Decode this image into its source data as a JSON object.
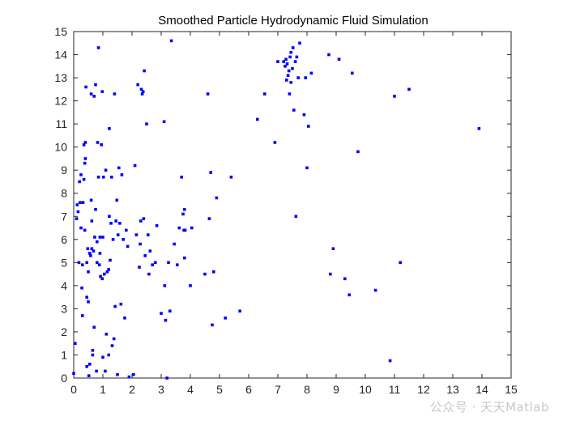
{
  "watermark": "公众号 · 天天Matlab",
  "chart_data": {
    "type": "scatter",
    "title": "Smoothed Particle Hydrodynamic Fluid Simulation",
    "xlabel": "",
    "ylabel": "",
    "xlim": [
      0,
      15
    ],
    "ylim": [
      0,
      15
    ],
    "xticks": [
      0,
      1,
      2,
      3,
      4,
      5,
      6,
      7,
      8,
      9,
      10,
      11,
      12,
      13,
      14,
      15
    ],
    "yticks": [
      0,
      1,
      2,
      3,
      4,
      5,
      6,
      7,
      8,
      9,
      10,
      11,
      12,
      13,
      14,
      15
    ],
    "grid": false,
    "marker_color": "#0000ff",
    "points": [
      [
        0.0,
        0.2
      ],
      [
        0.05,
        1.5
      ],
      [
        0.1,
        6.9
      ],
      [
        0.12,
        7.5
      ],
      [
        0.15,
        7.2
      ],
      [
        0.18,
        5.0
      ],
      [
        0.2,
        8.5
      ],
      [
        0.22,
        7.6
      ],
      [
        0.25,
        6.5
      ],
      [
        0.25,
        8.8
      ],
      [
        0.28,
        3.9
      ],
      [
        0.3,
        2.7
      ],
      [
        0.3,
        4.9
      ],
      [
        0.32,
        7.6
      ],
      [
        0.35,
        10.1
      ],
      [
        0.35,
        8.6
      ],
      [
        0.38,
        6.4
      ],
      [
        0.38,
        9.3
      ],
      [
        0.4,
        10.2
      ],
      [
        0.4,
        9.5
      ],
      [
        0.42,
        12.6
      ],
      [
        0.45,
        3.5
      ],
      [
        0.45,
        0.5
      ],
      [
        0.45,
        5.0
      ],
      [
        0.48,
        5.6
      ],
      [
        0.5,
        4.6
      ],
      [
        0.5,
        3.3
      ],
      [
        0.52,
        0.1
      ],
      [
        0.55,
        0.6
      ],
      [
        0.55,
        5.4
      ],
      [
        0.58,
        5.3
      ],
      [
        0.6,
        12.3
      ],
      [
        0.6,
        7.7
      ],
      [
        0.62,
        6.8
      ],
      [
        0.62,
        5.6
      ],
      [
        0.65,
        1.2
      ],
      [
        0.65,
        1.0
      ],
      [
        0.68,
        5.5
      ],
      [
        0.7,
        2.2
      ],
      [
        0.7,
        12.2
      ],
      [
        0.72,
        6.1
      ],
      [
        0.75,
        7.3
      ],
      [
        0.75,
        12.7
      ],
      [
        0.78,
        0.3
      ],
      [
        0.8,
        5.0
      ],
      [
        0.8,
        5.9
      ],
      [
        0.82,
        10.2
      ],
      [
        0.85,
        14.3
      ],
      [
        0.85,
        8.7
      ],
      [
        0.88,
        4.9
      ],
      [
        0.9,
        5.4
      ],
      [
        0.9,
        6.1
      ],
      [
        0.92,
        4.4
      ],
      [
        0.95,
        10.1
      ],
      [
        0.98,
        12.4
      ],
      [
        0.98,
        4.3
      ],
      [
        1.0,
        6.1
      ],
      [
        1.0,
        0.9
      ],
      [
        1.02,
        8.7
      ],
      [
        1.05,
        4.5
      ],
      [
        1.08,
        0.3
      ],
      [
        1.1,
        9.0
      ],
      [
        1.12,
        1.9
      ],
      [
        1.15,
        4.6
      ],
      [
        1.2,
        4.7
      ],
      [
        1.2,
        1.0
      ],
      [
        1.22,
        7.0
      ],
      [
        1.22,
        10.8
      ],
      [
        1.25,
        5.1
      ],
      [
        1.28,
        6.7
      ],
      [
        1.3,
        8.7
      ],
      [
        1.32,
        1.4
      ],
      [
        1.35,
        6.0
      ],
      [
        1.38,
        1.7
      ],
      [
        1.4,
        12.3
      ],
      [
        1.42,
        3.1
      ],
      [
        1.45,
        6.8
      ],
      [
        1.48,
        7.7
      ],
      [
        1.5,
        0.15
      ],
      [
        1.52,
        6.2
      ],
      [
        1.55,
        9.1
      ],
      [
        1.58,
        6.7
      ],
      [
        1.62,
        3.2
      ],
      [
        1.65,
        8.8
      ],
      [
        1.7,
        6.0
      ],
      [
        1.75,
        2.6
      ],
      [
        1.8,
        6.4
      ],
      [
        1.85,
        5.7
      ],
      [
        1.9,
        0.05
      ],
      [
        2.05,
        0.15
      ],
      [
        2.1,
        9.2
      ],
      [
        2.15,
        6.2
      ],
      [
        2.2,
        12.7
      ],
      [
        2.25,
        4.8
      ],
      [
        2.28,
        5.8
      ],
      [
        2.3,
        6.8
      ],
      [
        2.32,
        12.5
      ],
      [
        2.35,
        12.3
      ],
      [
        2.38,
        12.4
      ],
      [
        2.4,
        6.9
      ],
      [
        2.42,
        13.3
      ],
      [
        2.45,
        5.3
      ],
      [
        2.5,
        11.0
      ],
      [
        2.55,
        6.2
      ],
      [
        2.58,
        4.5
      ],
      [
        2.62,
        5.5
      ],
      [
        2.7,
        4.9
      ],
      [
        2.8,
        5.0
      ],
      [
        2.85,
        6.6
      ],
      [
        3.0,
        2.8
      ],
      [
        3.1,
        11.1
      ],
      [
        3.12,
        4.0
      ],
      [
        3.15,
        2.5
      ],
      [
        3.2,
        0.0
      ],
      [
        3.25,
        5.0
      ],
      [
        3.3,
        2.9
      ],
      [
        3.35,
        14.6
      ],
      [
        3.45,
        5.8
      ],
      [
        3.55,
        4.9
      ],
      [
        3.62,
        6.5
      ],
      [
        3.7,
        8.7
      ],
      [
        3.75,
        7.1
      ],
      [
        3.78,
        6.4
      ],
      [
        3.8,
        7.3
      ],
      [
        3.82,
        6.4
      ],
      [
        3.8,
        5.2
      ],
      [
        4.0,
        4.0
      ],
      [
        4.05,
        6.5
      ],
      [
        4.5,
        4.5
      ],
      [
        4.6,
        12.3
      ],
      [
        4.65,
        6.9
      ],
      [
        4.7,
        8.9
      ],
      [
        4.75,
        2.3
      ],
      [
        4.8,
        4.6
      ],
      [
        4.9,
        7.8
      ],
      [
        5.2,
        2.6
      ],
      [
        5.4,
        8.7
      ],
      [
        5.7,
        2.9
      ],
      [
        6.3,
        11.2
      ],
      [
        6.55,
        12.3
      ],
      [
        6.9,
        10.2
      ],
      [
        7.0,
        13.7
      ],
      [
        7.2,
        13.7
      ],
      [
        7.25,
        13.5
      ],
      [
        7.28,
        13.8
      ],
      [
        7.3,
        12.9
      ],
      [
        7.32,
        13.6
      ],
      [
        7.35,
        13.1
      ],
      [
        7.38,
        13.3
      ],
      [
        7.4,
        12.3
      ],
      [
        7.42,
        13.9
      ],
      [
        7.45,
        12.8
      ],
      [
        7.45,
        14.1
      ],
      [
        7.5,
        13.4
      ],
      [
        7.52,
        14.3
      ],
      [
        7.55,
        11.6
      ],
      [
        7.6,
        13.7
      ],
      [
        7.62,
        7.0
      ],
      [
        7.65,
        13.9
      ],
      [
        7.7,
        13.0
      ],
      [
        7.75,
        14.5
      ],
      [
        7.9,
        11.4
      ],
      [
        7.95,
        13.0
      ],
      [
        8.0,
        9.1
      ],
      [
        8.05,
        10.9
      ],
      [
        8.15,
        13.2
      ],
      [
        8.75,
        14.0
      ],
      [
        8.8,
        4.5
      ],
      [
        8.9,
        5.6
      ],
      [
        9.1,
        13.8
      ],
      [
        9.3,
        4.3
      ],
      [
        9.45,
        3.6
      ],
      [
        9.55,
        13.2
      ],
      [
        9.75,
        9.8
      ],
      [
        10.35,
        3.8
      ],
      [
        10.85,
        0.75
      ],
      [
        11.0,
        12.2
      ],
      [
        11.2,
        5.0
      ],
      [
        11.5,
        12.5
      ],
      [
        13.9,
        10.8
      ]
    ]
  }
}
